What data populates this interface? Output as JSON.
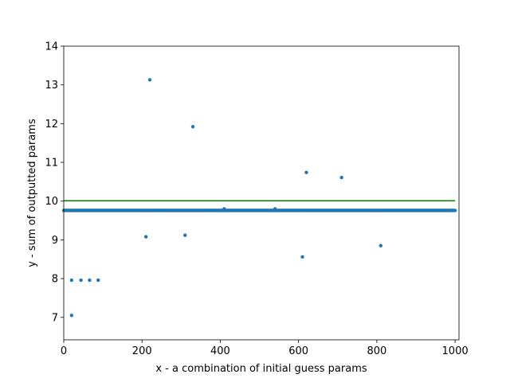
{
  "chart_data": {
    "type": "scatter",
    "title": "",
    "xlabel": "x - a combination of initial guess params",
    "ylabel": "y - sum of outputted params",
    "xlim": [
      0,
      1010
    ],
    "ylim": [
      6.42,
      14.0
    ],
    "xticks": [
      0,
      200,
      400,
      600,
      800,
      1000
    ],
    "yticks": [
      7,
      8,
      9,
      10,
      11,
      12,
      13,
      14
    ],
    "grid": false,
    "colors": {
      "points": "#1f77b4",
      "reference_line": "#008000",
      "axes": "#000000"
    },
    "baseline_series": {
      "x_start": 0,
      "x_end": 1000,
      "step": 2,
      "y": 9.76
    },
    "points": [
      {
        "x": 20,
        "y": 7.05
      },
      {
        "x": 20,
        "y": 7.96
      },
      {
        "x": 44,
        "y": 7.96
      },
      {
        "x": 66,
        "y": 7.96
      },
      {
        "x": 88,
        "y": 7.96
      },
      {
        "x": 210,
        "y": 9.08
      },
      {
        "x": 220,
        "y": 13.13
      },
      {
        "x": 310,
        "y": 9.12
      },
      {
        "x": 330,
        "y": 11.92
      },
      {
        "x": 410,
        "y": 9.8
      },
      {
        "x": 540,
        "y": 9.8
      },
      {
        "x": 610,
        "y": 8.56
      },
      {
        "x": 620,
        "y": 10.74
      },
      {
        "x": 710,
        "y": 10.61
      },
      {
        "x": 810,
        "y": 8.85
      }
    ],
    "reference_line": {
      "x": [
        0,
        1000
      ],
      "y": [
        10.01,
        10.01
      ]
    }
  }
}
